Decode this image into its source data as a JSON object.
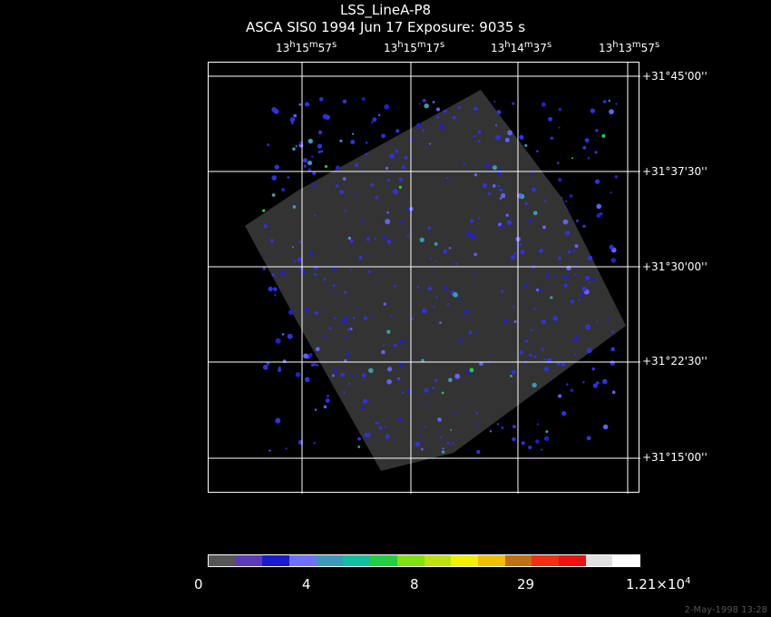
{
  "title": "LSS_LineA-P8",
  "subtitle": "ASCA SIS0   1994 Jun 17    Exposure:  9035 s",
  "ra_ticks": [
    {
      "h": "13",
      "m": "15",
      "s": "57"
    },
    {
      "h": "13",
      "m": "15",
      "s": "17"
    },
    {
      "h": "13",
      "m": "14",
      "s": "37"
    },
    {
      "h": "13",
      "m": "13",
      "s": "57"
    }
  ],
  "dec_ticks": [
    "+31°45'00''",
    "+31°37'30''",
    "+31°30'00''",
    "+31°22'30''",
    "+31°15'00''"
  ],
  "colorbar": {
    "colors": [
      "#555555",
      "#5a3ab8",
      "#1a1ad0",
      "#7070ff",
      "#3a9ab8",
      "#10c0a0",
      "#20d040",
      "#80e010",
      "#c0e010",
      "#f0f000",
      "#f0c000",
      "#c07010",
      "#f03010",
      "#f01010",
      "#e0e0e0",
      "#ffffff"
    ],
    "labels": [
      "0",
      "4",
      "8",
      "29",
      "1.21×10"
    ],
    "label_exp": "4"
  },
  "timestamp": "2-May-1998 13:28"
}
